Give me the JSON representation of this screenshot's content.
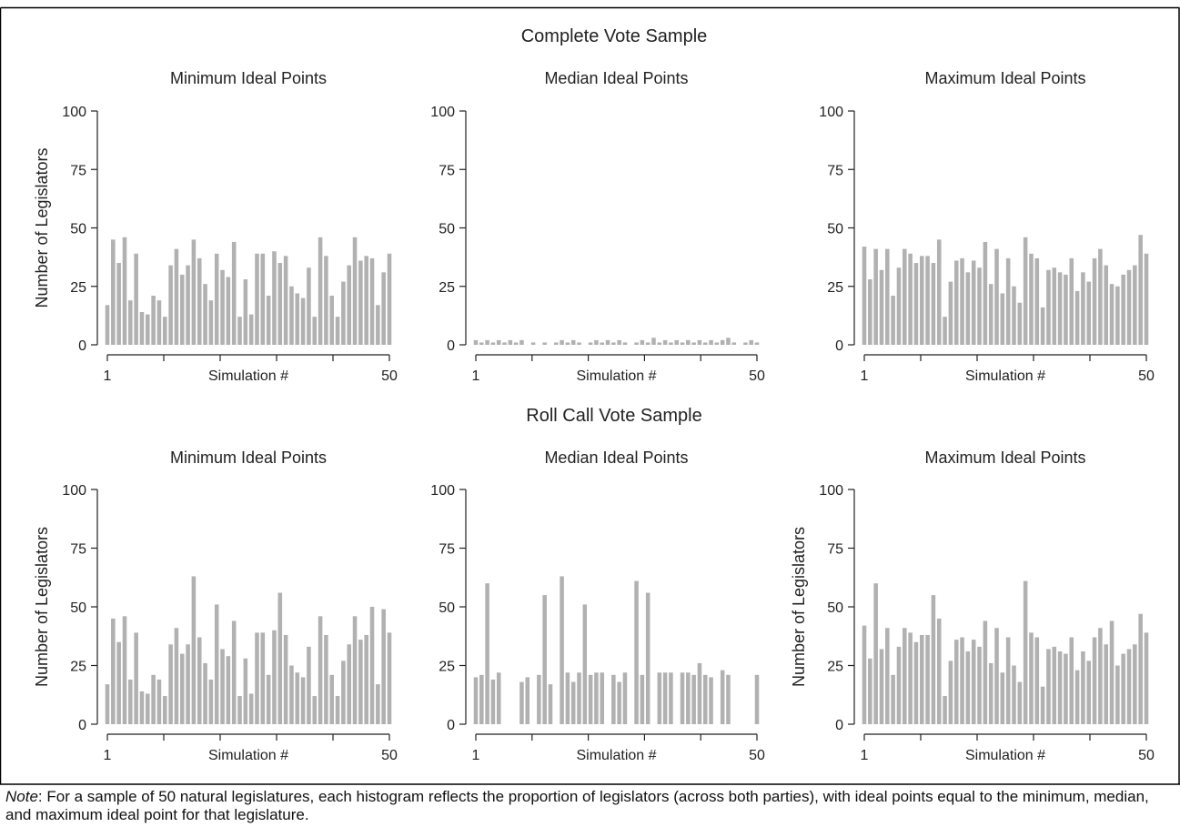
{
  "figure": {
    "row_titles": [
      "Complete Vote Sample",
      "Roll Call Vote Sample"
    ],
    "note_label": "Note",
    "note_text": ": For a sample of 50 natural legislatures, each histogram reflects the proportion of legislators (across both parties), with ideal points equal to the minimum, median, and maximum ideal point for that legislature."
  },
  "colors": {
    "bar": "#b1b1b1",
    "axis": "#222222",
    "text": "#222222",
    "border": "#000000"
  },
  "chart_data": [
    {
      "type": "bar",
      "title": "Minimum Ideal Points",
      "group": "Complete Vote Sample",
      "xlabel": "Simulation #",
      "ylabel": "Number of Legislators",
      "x_tick_labels": [
        "1",
        "50"
      ],
      "ylim": [
        0,
        100
      ],
      "yticks": [
        0,
        25,
        50,
        75,
        100
      ],
      "x": [
        1,
        2,
        3,
        4,
        5,
        6,
        7,
        8,
        9,
        10,
        11,
        12,
        13,
        14,
        15,
        16,
        17,
        18,
        19,
        20,
        21,
        22,
        23,
        24,
        25,
        26,
        27,
        28,
        29,
        30,
        31,
        32,
        33,
        34,
        35,
        36,
        37,
        38,
        39,
        40,
        41,
        42,
        43,
        44,
        45,
        46,
        47,
        48,
        49,
        50
      ],
      "values": [
        17,
        45,
        35,
        46,
        19,
        39,
        14,
        13,
        21,
        19,
        12,
        34,
        41,
        30,
        34,
        45,
        37,
        26,
        19,
        39,
        32,
        29,
        44,
        12,
        28,
        13,
        39,
        39,
        21,
        40,
        35,
        38,
        25,
        22,
        20,
        33,
        12,
        46,
        38,
        21,
        12,
        27,
        34,
        46,
        36,
        38,
        37,
        17,
        31,
        39
      ]
    },
    {
      "type": "bar",
      "title": "Median Ideal Points",
      "group": "Complete Vote Sample",
      "xlabel": "Simulation #",
      "ylabel": "",
      "x_tick_labels": [
        "1",
        "50"
      ],
      "ylim": [
        0,
        100
      ],
      "yticks": [
        0,
        25,
        50,
        75,
        100
      ],
      "x": [
        1,
        2,
        3,
        4,
        5,
        6,
        7,
        8,
        9,
        10,
        11,
        12,
        13,
        14,
        15,
        16,
        17,
        18,
        19,
        20,
        21,
        22,
        23,
        24,
        25,
        26,
        27,
        28,
        29,
        30,
        31,
        32,
        33,
        34,
        35,
        36,
        37,
        38,
        39,
        40,
        41,
        42,
        43,
        44,
        45,
        46,
        47,
        48,
        49,
        50
      ],
      "values": [
        2,
        1,
        2,
        1,
        2,
        1,
        2,
        1,
        2,
        0,
        1,
        0,
        1,
        0,
        1,
        2,
        1,
        2,
        1,
        0,
        1,
        2,
        1,
        2,
        1,
        2,
        1,
        0,
        1,
        2,
        1,
        3,
        1,
        2,
        1,
        2,
        1,
        2,
        1,
        2,
        1,
        2,
        1,
        2,
        3,
        1,
        0,
        1,
        2,
        1
      ]
    },
    {
      "type": "bar",
      "title": "Maximum Ideal Points",
      "group": "Complete Vote Sample",
      "xlabel": "Simulation #",
      "ylabel": "",
      "x_tick_labels": [
        "1",
        "50"
      ],
      "ylim": [
        0,
        100
      ],
      "yticks": [
        0,
        25,
        50,
        75,
        100
      ],
      "x": [
        1,
        2,
        3,
        4,
        5,
        6,
        7,
        8,
        9,
        10,
        11,
        12,
        13,
        14,
        15,
        16,
        17,
        18,
        19,
        20,
        21,
        22,
        23,
        24,
        25,
        26,
        27,
        28,
        29,
        30,
        31,
        32,
        33,
        34,
        35,
        36,
        37,
        38,
        39,
        40,
        41,
        42,
        43,
        44,
        45,
        46,
        47,
        48,
        49,
        50
      ],
      "values": [
        42,
        28,
        41,
        32,
        41,
        21,
        33,
        41,
        39,
        35,
        38,
        38,
        35,
        45,
        12,
        27,
        36,
        37,
        31,
        36,
        33,
        44,
        26,
        41,
        22,
        37,
        25,
        18,
        46,
        39,
        37,
        16,
        32,
        33,
        31,
        30,
        37,
        23,
        31,
        27,
        37,
        41,
        34,
        26,
        25,
        30,
        32,
        34,
        47,
        39
      ]
    },
    {
      "type": "bar",
      "title": "Minimum Ideal Points",
      "group": "Roll Call Vote Sample",
      "xlabel": "Simulation #",
      "ylabel": "Number of Legislators",
      "x_tick_labels": [
        "1",
        "50"
      ],
      "ylim": [
        0,
        100
      ],
      "yticks": [
        0,
        25,
        50,
        75,
        100
      ],
      "x": [
        1,
        2,
        3,
        4,
        5,
        6,
        7,
        8,
        9,
        10,
        11,
        12,
        13,
        14,
        15,
        16,
        17,
        18,
        19,
        20,
        21,
        22,
        23,
        24,
        25,
        26,
        27,
        28,
        29,
        30,
        31,
        32,
        33,
        34,
        35,
        36,
        37,
        38,
        39,
        40,
        41,
        42,
        43,
        44,
        45,
        46,
        47,
        48,
        49,
        50
      ],
      "values": [
        17,
        45,
        35,
        46,
        19,
        39,
        14,
        13,
        21,
        19,
        12,
        34,
        41,
        30,
        34,
        63,
        37,
        26,
        19,
        51,
        32,
        29,
        44,
        12,
        28,
        13,
        39,
        39,
        21,
        40,
        56,
        38,
        25,
        22,
        20,
        33,
        12,
        46,
        38,
        21,
        12,
        27,
        34,
        46,
        36,
        38,
        50,
        17,
        49,
        39
      ]
    },
    {
      "type": "bar",
      "title": "Median Ideal Points",
      "group": "Roll Call Vote Sample",
      "xlabel": "Simulation #",
      "ylabel": "",
      "x_tick_labels": [
        "1",
        "50"
      ],
      "ylim": [
        0,
        100
      ],
      "yticks": [
        0,
        25,
        50,
        75,
        100
      ],
      "x": [
        1,
        2,
        3,
        4,
        5,
        6,
        7,
        8,
        9,
        10,
        11,
        12,
        13,
        14,
        15,
        16,
        17,
        18,
        19,
        20,
        21,
        22,
        23,
        24,
        25,
        26,
        27,
        28,
        29,
        30,
        31,
        32,
        33,
        34,
        35,
        36,
        37,
        38,
        39,
        40,
        41,
        42,
        43,
        44,
        45,
        46,
        47,
        48,
        49,
        50
      ],
      "values": [
        20,
        21,
        60,
        19,
        22,
        0,
        0,
        0,
        18,
        20,
        0,
        21,
        55,
        17,
        0,
        63,
        22,
        18,
        22,
        51,
        21,
        22,
        22,
        0,
        21,
        18,
        22,
        0,
        61,
        21,
        56,
        0,
        22,
        22,
        22,
        0,
        22,
        22,
        21,
        26,
        21,
        20,
        0,
        23,
        21,
        0,
        0,
        0,
        0,
        21
      ]
    },
    {
      "type": "bar",
      "title": "Maximum Ideal Points",
      "group": "Roll Call Vote Sample",
      "xlabel": "Simulation #",
      "ylabel": "Number of Legislators",
      "x_tick_labels": [
        "1",
        "50"
      ],
      "ylim": [
        0,
        100
      ],
      "yticks": [
        0,
        25,
        50,
        75,
        100
      ],
      "x": [
        1,
        2,
        3,
        4,
        5,
        6,
        7,
        8,
        9,
        10,
        11,
        12,
        13,
        14,
        15,
        16,
        17,
        18,
        19,
        20,
        21,
        22,
        23,
        24,
        25,
        26,
        27,
        28,
        29,
        30,
        31,
        32,
        33,
        34,
        35,
        36,
        37,
        38,
        39,
        40,
        41,
        42,
        43,
        44,
        45,
        46,
        47,
        48,
        49,
        50
      ],
      "values": [
        42,
        28,
        60,
        32,
        41,
        21,
        33,
        41,
        39,
        35,
        38,
        38,
        55,
        45,
        12,
        27,
        36,
        37,
        31,
        36,
        33,
        44,
        26,
        41,
        22,
        37,
        25,
        18,
        61,
        39,
        37,
        16,
        32,
        33,
        31,
        30,
        37,
        23,
        31,
        27,
        37,
        41,
        34,
        44,
        25,
        30,
        32,
        34,
        47,
        39
      ]
    }
  ]
}
